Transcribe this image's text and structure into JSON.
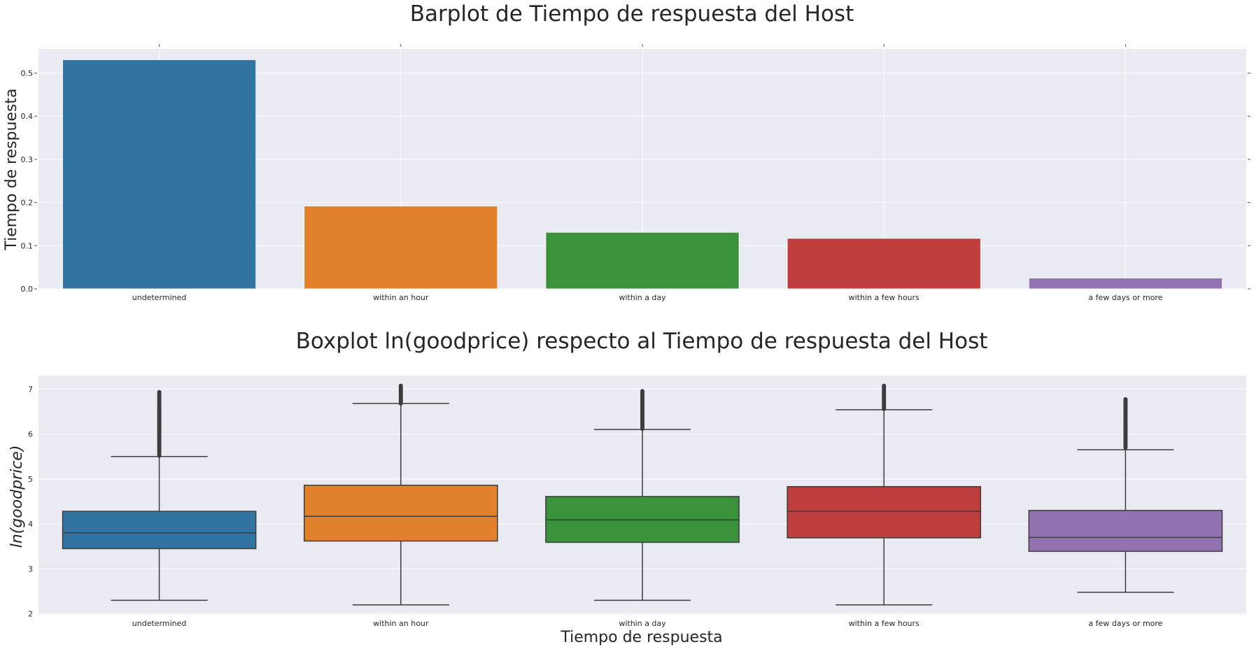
{
  "chart_data": [
    {
      "type": "bar",
      "title": "Barplot de Tiempo de respuesta del Host",
      "xlabel": "",
      "ylabel": "Tiempo de respuesta",
      "categories": [
        "undetermined",
        "within an hour",
        "within a day",
        "within a few hours",
        "a few days or more"
      ],
      "values": [
        0.531,
        0.192,
        0.131,
        0.117,
        0.025
      ],
      "colors": [
        "#3274a1",
        "#e1812c",
        "#3a923a",
        "#c03d3e",
        "#9372b2"
      ],
      "ylim": [
        0,
        0.556
      ],
      "yticks": [
        "0.0",
        "0.1",
        "0.2",
        "0.3",
        "0.4",
        "0.5"
      ],
      "grid": true
    },
    {
      "type": "box",
      "title": "Boxplot ln(goodprice) respecto al Tiempo de respuesta del Host",
      "xlabel": "Tiempo de respuesta",
      "ylabel": "ln(goodprice)",
      "categories": [
        "undetermined",
        "within an hour",
        "within a day",
        "within a few hours",
        "a few days or more"
      ],
      "colors": [
        "#3274a1",
        "#e1812c",
        "#3a923a",
        "#c03d3e",
        "#9372b2"
      ],
      "ylim": [
        1.98,
        7.3
      ],
      "yticks": [
        "2",
        "3",
        "4",
        "5",
        "6",
        "7"
      ],
      "grid": true,
      "boxes": [
        {
          "min": 2.3,
          "q1": 3.45,
          "median": 3.8,
          "q3": 4.28,
          "max": 5.5,
          "fliers_low": 5.52,
          "fliers_high": 6.93
        },
        {
          "min": 2.2,
          "q1": 3.62,
          "median": 4.17,
          "q3": 4.86,
          "max": 6.68,
          "fliers_low": 6.68,
          "fliers_high": 7.07
        },
        {
          "min": 2.3,
          "q1": 3.59,
          "median": 4.09,
          "q3": 4.61,
          "max": 6.1,
          "fliers_low": 6.12,
          "fliers_high": 6.95
        },
        {
          "min": 2.2,
          "q1": 3.69,
          "median": 4.28,
          "q3": 4.83,
          "max": 6.54,
          "fliers_low": 6.56,
          "fliers_high": 7.07
        },
        {
          "min": 2.48,
          "q1": 3.39,
          "median": 3.7,
          "q3": 4.3,
          "max": 5.65,
          "fliers_low": 5.7,
          "fliers_high": 6.77
        }
      ]
    }
  ]
}
